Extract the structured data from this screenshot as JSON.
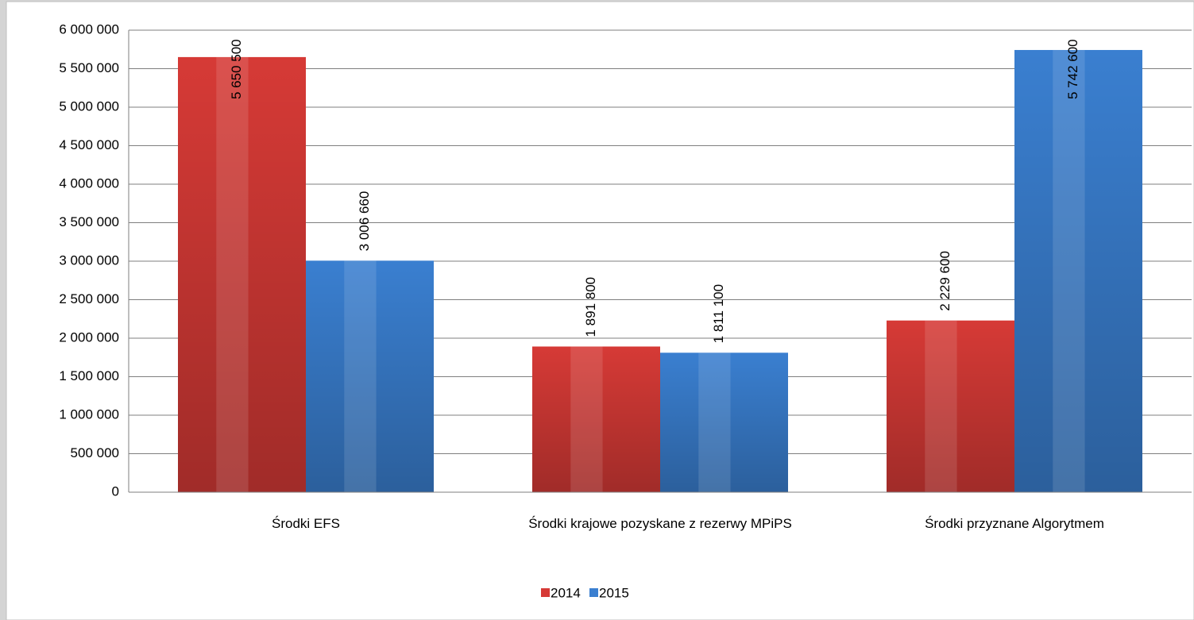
{
  "chart_data": {
    "type": "bar",
    "categories": [
      "Środki EFS",
      "Środki krajowe  pozyskane z rezerwy MPiPS",
      "Środki przyznane Algorytmem"
    ],
    "series": [
      {
        "name": "2014",
        "color": "#d63a36",
        "values": [
          5650500,
          1891800,
          2229600
        ],
        "value_labels": [
          "5 650 500",
          "1 891 800",
          "2 229 600"
        ]
      },
      {
        "name": "2015",
        "color": "#3a7fd0",
        "values": [
          3006660,
          1811100,
          5742600
        ],
        "value_labels": [
          "3 006 660",
          "1 811 100",
          "5 742 600"
        ]
      }
    ],
    "ylim": [
      0,
      6000000
    ],
    "yticks": [
      0,
      {
        "value": 500000,
        "label": "500 000"
      },
      {
        "value": 1000000,
        "label": "1 000 000"
      },
      {
        "value": 1500000,
        "label": "1 500 000"
      },
      {
        "value": 2000000,
        "label": "2 000 000"
      },
      {
        "value": 2500000,
        "label": "2 500 000"
      },
      {
        "value": 3000000,
        "label": "3 000 000"
      },
      {
        "value": 3500000,
        "label": "3 500 000"
      },
      {
        "value": 4000000,
        "label": "4 000 000"
      },
      {
        "value": 4500000,
        "label": "4 500 000"
      },
      {
        "value": 5000000,
        "label": "5 000 000"
      },
      {
        "value": 5500000,
        "label": "5 500 000"
      },
      {
        "value": 6000000,
        "label": "6 000 000"
      }
    ],
    "grid": true,
    "legend": "bottom"
  }
}
